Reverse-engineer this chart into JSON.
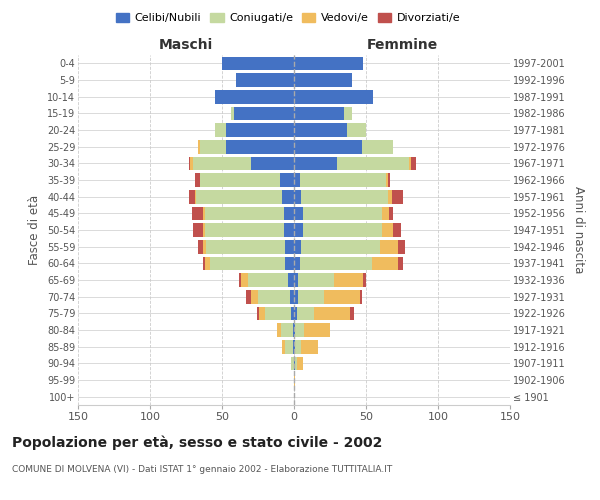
{
  "age_groups": [
    "100+",
    "95-99",
    "90-94",
    "85-89",
    "80-84",
    "75-79",
    "70-74",
    "65-69",
    "60-64",
    "55-59",
    "50-54",
    "45-49",
    "40-44",
    "35-39",
    "30-34",
    "25-29",
    "20-24",
    "15-19",
    "10-14",
    "5-9",
    "0-4"
  ],
  "birth_years": [
    "≤ 1901",
    "1902-1906",
    "1907-1911",
    "1912-1916",
    "1917-1921",
    "1922-1926",
    "1927-1931",
    "1932-1936",
    "1937-1941",
    "1942-1946",
    "1947-1951",
    "1952-1956",
    "1957-1961",
    "1962-1966",
    "1967-1971",
    "1972-1976",
    "1977-1981",
    "1982-1986",
    "1987-1991",
    "1992-1996",
    "1997-2001"
  ],
  "males": {
    "celibi": [
      0,
      0,
      0,
      1,
      1,
      2,
      3,
      4,
      6,
      6,
      7,
      7,
      8,
      10,
      30,
      47,
      47,
      42,
      55,
      40,
      50
    ],
    "coniugati": [
      0,
      0,
      2,
      5,
      8,
      18,
      22,
      28,
      52,
      55,
      55,
      55,
      60,
      55,
      40,
      18,
      8,
      2,
      0,
      0,
      0
    ],
    "vedovi": [
      0,
      0,
      0,
      2,
      3,
      4,
      5,
      5,
      4,
      2,
      1,
      1,
      1,
      0,
      2,
      2,
      0,
      0,
      0,
      0,
      0
    ],
    "divorziati": [
      0,
      0,
      0,
      0,
      0,
      2,
      3,
      1,
      1,
      4,
      7,
      8,
      4,
      4,
      1,
      0,
      0,
      0,
      0,
      0,
      0
    ]
  },
  "females": {
    "nubili": [
      0,
      0,
      1,
      1,
      1,
      2,
      3,
      3,
      4,
      5,
      6,
      6,
      5,
      4,
      30,
      47,
      37,
      35,
      55,
      40,
      48
    ],
    "coniugate": [
      0,
      0,
      1,
      4,
      6,
      12,
      18,
      25,
      50,
      55,
      55,
      55,
      60,
      60,
      50,
      22,
      13,
      5,
      0,
      0,
      0
    ],
    "vedove": [
      0,
      1,
      4,
      12,
      18,
      25,
      25,
      20,
      18,
      12,
      8,
      5,
      3,
      1,
      1,
      0,
      0,
      0,
      0,
      0,
      0
    ],
    "divorziate": [
      0,
      0,
      0,
      0,
      0,
      3,
      1,
      2,
      4,
      5,
      5,
      3,
      8,
      2,
      4,
      0,
      0,
      0,
      0,
      0,
      0
    ]
  },
  "colors": {
    "celibi": "#4472C4",
    "coniugati": "#C5D9A0",
    "vedovi": "#F0BC5E",
    "divorziati": "#C0504D"
  },
  "title": "Popolazione per età, sesso e stato civile - 2002",
  "subtitle": "COMUNE DI MOLVENA (VI) - Dati ISTAT 1° gennaio 2002 - Elaborazione TUTTITALIA.IT",
  "xlabel_left": "Maschi",
  "xlabel_right": "Femmine",
  "ylabel_left": "Fasce di età",
  "ylabel_right": "Anni di nascita",
  "xlim": 150,
  "background_color": "#ffffff",
  "grid_color": "#cccccc"
}
